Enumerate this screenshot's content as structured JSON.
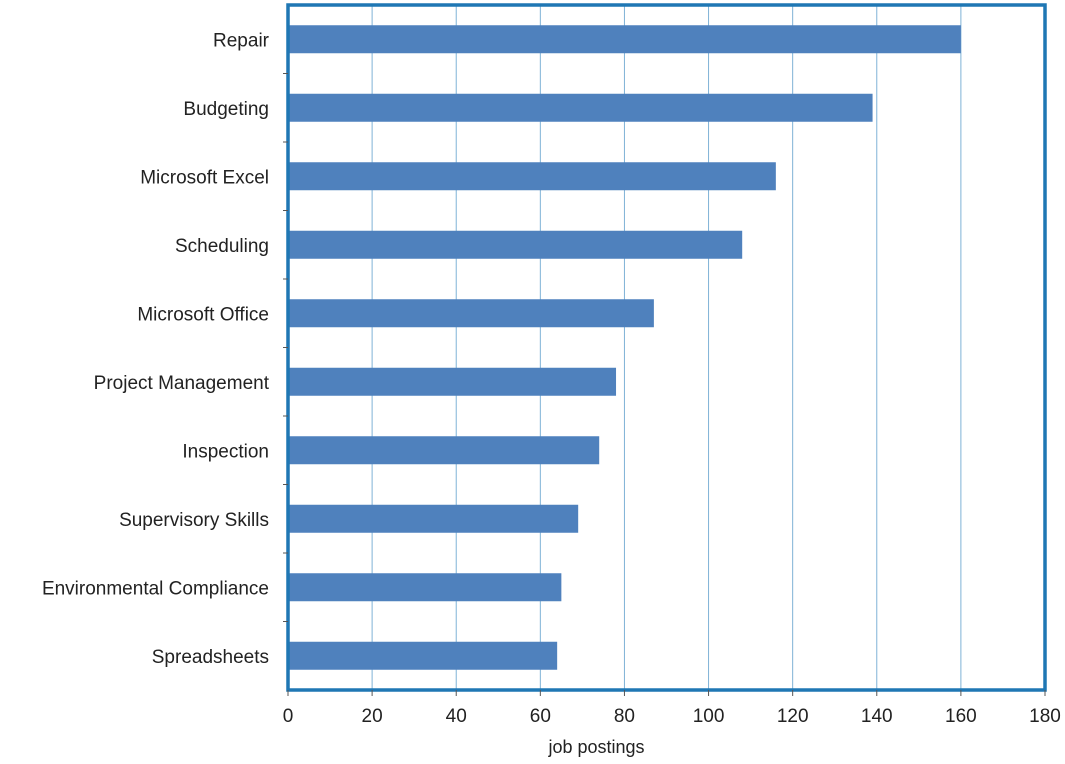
{
  "chart_data": {
    "type": "bar",
    "orientation": "horizontal",
    "categories": [
      "Repair",
      "Budgeting",
      "Microsoft Excel",
      "Scheduling",
      "Microsoft Office",
      "Project Management",
      "Inspection",
      "Supervisory Skills",
      "Environmental Compliance",
      "Spreadsheets"
    ],
    "values": [
      160,
      139,
      116,
      108,
      87,
      78,
      74,
      69,
      65,
      64
    ],
    "xlabel": "job postings",
    "ylabel": "",
    "title": "",
    "xlim": [
      0,
      180
    ],
    "xticks": [
      "0",
      "20",
      "40",
      "60",
      "80",
      "100",
      "120",
      "140",
      "160",
      "180"
    ],
    "grid": "vertical",
    "legend": "none",
    "colors": {
      "bar": "#4f81bd",
      "frame": "#1f77b4",
      "grid": "#7fb2d6"
    }
  }
}
